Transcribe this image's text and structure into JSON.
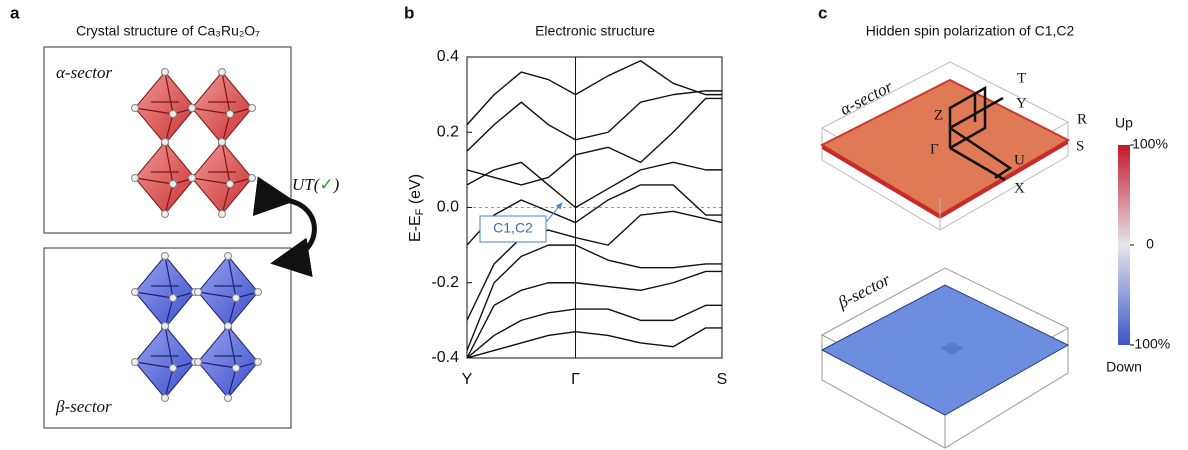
{
  "panel_a": {
    "letter": "a",
    "title": "Crystal structure of Ca₃Ru₂O₇",
    "alpha_label": "α-sector",
    "beta_label": "β-sector",
    "operation": {
      "prefix": "UT(",
      "check": "✓",
      "suffix": ")"
    }
  },
  "panel_b": {
    "letter": "b",
    "chart_data": {
      "type": "line",
      "title": "Electronic structure",
      "y_label": {
        "main": "E-E",
        "sub": "F",
        "unit": " (eV)"
      },
      "xlim": [
        0,
        2.35
      ],
      "xticks": [
        {
          "value": 0,
          "label": "Y"
        },
        {
          "value": 1,
          "label": "Γ"
        },
        {
          "value": 2.35,
          "label": "S"
        }
      ],
      "ylim": [
        -0.4,
        0.4
      ],
      "yticks": [
        -0.4,
        -0.2,
        {
          "value": 0,
          "label": "0.0"
        },
        0.2,
        0.4
      ],
      "reference_line": 0,
      "annotation": "C1,C2",
      "color": "#111111",
      "x": [
        0,
        0.25,
        0.5,
        0.75,
        1,
        1.3,
        1.6,
        1.9,
        2.2,
        2.35
      ],
      "series": [
        {
          "values": [
            0.22,
            0.3,
            0.36,
            0.34,
            0.3,
            0.35,
            0.39,
            0.33,
            0.3,
            0.3
          ]
        },
        {
          "values": [
            0.15,
            0.22,
            0.28,
            0.22,
            0.18,
            0.2,
            0.28,
            0.3,
            0.31,
            0.31
          ]
        },
        {
          "values": [
            0.1,
            0.08,
            0.06,
            0.08,
            0.14,
            0.16,
            0.12,
            0.2,
            0.29,
            0.29
          ]
        },
        {
          "values": [
            0.06,
            0.1,
            0.12,
            0.06,
            0.0,
            0.05,
            0.1,
            0.12,
            0.1,
            0.1
          ]
        },
        {
          "values": [
            -0.1,
            -0.02,
            0.02,
            -0.01,
            -0.04,
            0.02,
            0.06,
            0.06,
            -0.02,
            -0.02
          ]
        },
        {
          "values": [
            -0.3,
            -0.15,
            -0.08,
            -0.06,
            -0.08,
            -0.1,
            -0.02,
            -0.01,
            -0.03,
            -0.04
          ]
        },
        {
          "values": [
            -0.38,
            -0.2,
            -0.13,
            -0.1,
            -0.1,
            -0.14,
            -0.16,
            -0.16,
            -0.15,
            -0.15
          ]
        },
        {
          "values": [
            -0.4,
            -0.26,
            -0.22,
            -0.2,
            -0.2,
            -0.21,
            -0.22,
            -0.2,
            -0.17,
            -0.17
          ]
        },
        {
          "values": [
            -0.4,
            -0.34,
            -0.3,
            -0.28,
            -0.27,
            -0.27,
            -0.3,
            -0.3,
            -0.26,
            -0.26
          ]
        },
        {
          "values": [
            -0.4,
            -0.38,
            -0.36,
            -0.34,
            -0.33,
            -0.34,
            -0.36,
            -0.37,
            -0.32,
            -0.32
          ]
        }
      ]
    }
  },
  "panel_c": {
    "letter": "c",
    "title": "Hidden spin polarization of C1,C2",
    "alpha_label": "α-sector",
    "beta_label": "β-sector",
    "k_points": {
      "T": "T",
      "Y": "Y",
      "Z": "Z",
      "R": "R",
      "Gamma": "Γ",
      "S": "S",
      "U": "U",
      "X": "X"
    },
    "colorbar": {
      "top_label": "Up",
      "bottom_label": "Down",
      "clim": [
        -100,
        100
      ],
      "ticks": [
        {
          "value": 100,
          "label": "100%"
        },
        {
          "value": 0,
          "label": "0"
        },
        {
          "value": -100,
          "label": "-100%"
        }
      ],
      "colors": [
        "#3a55c8",
        "#e6e6ea",
        "#c4172b"
      ]
    }
  }
}
